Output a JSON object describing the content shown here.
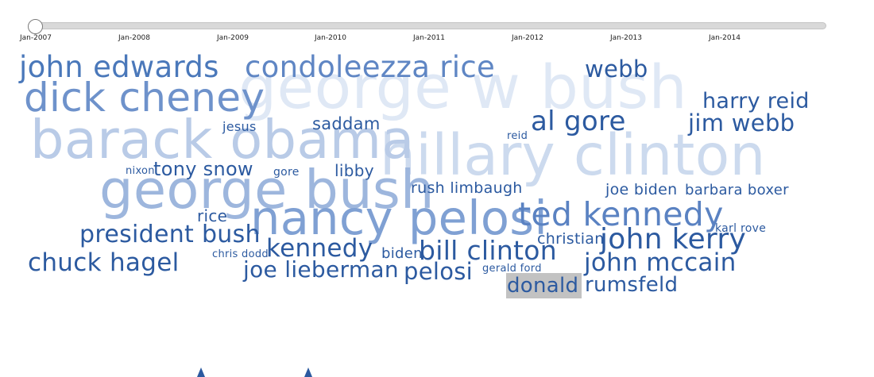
{
  "timeline": {
    "ticks": [
      "Jan-2007",
      "Jan-2008",
      "Jan-2009",
      "Jan-2010",
      "Jan-2011",
      "Jan-2012",
      "Jan-2013",
      "Jan-2014"
    ]
  },
  "palette": {
    "strong": "#2c5aa0",
    "medium": "#4a78ba",
    "light": "#7ba0d2",
    "faint": "#c8d8ef",
    "highlight_bg": "#c2c2c2"
  },
  "cloud": {
    "words": [
      "george w bush",
      "hillary clinton",
      "barack obama",
      "george bush",
      "nancy pelosi",
      "dick cheney",
      "ted kennedy",
      "john edwards",
      "condoleezza rice",
      "webb",
      "harry reid",
      "jim webb",
      "al gore",
      "saddam",
      "jesus",
      "reid",
      "nixon",
      "tony snow",
      "gore",
      "libby",
      "rush limbaugh",
      "joe biden",
      "barbara boxer",
      "rice",
      "president bush",
      "christian",
      "karl rove",
      "john kerry",
      "kennedy",
      "chris dodd",
      "biden",
      "bill clinton",
      "chuck hagel",
      "john mccain",
      "joe lieberman",
      "pelosi",
      "gerald ford",
      "donald",
      "rumsfeld"
    ]
  }
}
